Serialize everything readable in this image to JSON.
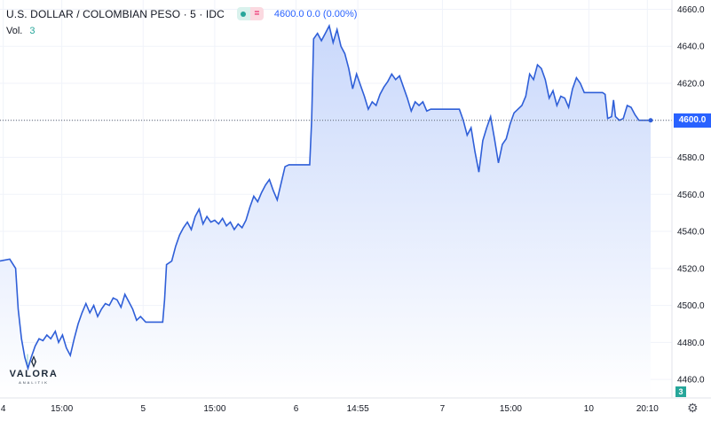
{
  "header": {
    "title": "U.S. DOLLAR / COLOMBIAN PESO · 5 · IDC",
    "eq_symbol": "=",
    "quote": "4600.0  0.0 (0.00%)"
  },
  "volume": {
    "label": "Vol.",
    "value": "3"
  },
  "last_price_label": "4600.0",
  "volume_tag": "3",
  "watermark": {
    "brand": "VALORA",
    "sub": "ANALITIK"
  },
  "colors": {
    "line": "#2f5fd8",
    "area_top": "#c9d8fb",
    "area_bottom": "#ffffff",
    "vol_up": "#26a69a",
    "vol_down": "#ef5350",
    "price_tag": "#2962ff"
  },
  "icons": {
    "settings": "gear-icon"
  },
  "chart_data": {
    "type": "area",
    "ylim": [
      4450,
      4665
    ],
    "y_ticks": [
      4460,
      4480,
      4500,
      4520,
      4540,
      4560,
      4580,
      4600,
      4620,
      4640,
      4660
    ],
    "y_tick_labels": [
      "4460.0",
      "4480.0",
      "4500.0",
      "4520.0",
      "4540.0",
      "4560.0",
      "4580.0",
      "4600.0",
      "4620.0",
      "4640.0",
      "4660.0"
    ],
    "x_range": [
      0,
      100
    ],
    "x_ticks": [
      {
        "x": 0.5,
        "label": "4"
      },
      {
        "x": 9.5,
        "label": "15:00"
      },
      {
        "x": 22.0,
        "label": "5"
      },
      {
        "x": 33.0,
        "label": "15:00"
      },
      {
        "x": 45.5,
        "label": "6"
      },
      {
        "x": 55.0,
        "label": "14:55"
      },
      {
        "x": 68.0,
        "label": "7"
      },
      {
        "x": 78.5,
        "label": "15:00"
      },
      {
        "x": 90.5,
        "label": "10"
      },
      {
        "x": 99.5,
        "label": "20:10"
      }
    ],
    "last_value": 4600.0,
    "price": [
      [
        0.0,
        4524
      ],
      [
        1.5,
        4525
      ],
      [
        2.4,
        4520
      ],
      [
        2.8,
        4498
      ],
      [
        3.3,
        4482
      ],
      [
        3.8,
        4472
      ],
      [
        4.3,
        4466
      ],
      [
        4.8,
        4472
      ],
      [
        5.4,
        4478
      ],
      [
        6.0,
        4482
      ],
      [
        6.6,
        4481
      ],
      [
        7.2,
        4484
      ],
      [
        7.8,
        4482
      ],
      [
        8.5,
        4486
      ],
      [
        9.0,
        4480
      ],
      [
        9.6,
        4484
      ],
      [
        10.2,
        4477
      ],
      [
        10.8,
        4473
      ],
      [
        11.4,
        4482
      ],
      [
        12.0,
        4490
      ],
      [
        12.6,
        4496
      ],
      [
        13.2,
        4501
      ],
      [
        13.8,
        4496
      ],
      [
        14.4,
        4500
      ],
      [
        15.0,
        4494
      ],
      [
        15.6,
        4498
      ],
      [
        16.2,
        4501
      ],
      [
        16.8,
        4500
      ],
      [
        17.4,
        4504
      ],
      [
        18.0,
        4503
      ],
      [
        18.6,
        4499
      ],
      [
        19.2,
        4506
      ],
      [
        19.8,
        4502
      ],
      [
        20.4,
        4498
      ],
      [
        21.0,
        4492
      ],
      [
        21.6,
        4494
      ],
      [
        22.4,
        4491
      ],
      [
        24.0,
        4491
      ],
      [
        25.0,
        4491
      ],
      [
        25.3,
        4503
      ],
      [
        25.6,
        4522
      ],
      [
        26.4,
        4524
      ],
      [
        27.0,
        4532
      ],
      [
        27.6,
        4538
      ],
      [
        28.2,
        4542
      ],
      [
        28.8,
        4545
      ],
      [
        29.4,
        4541
      ],
      [
        30.0,
        4548
      ],
      [
        30.6,
        4552
      ],
      [
        31.2,
        4544
      ],
      [
        31.8,
        4548
      ],
      [
        32.4,
        4545
      ],
      [
        33.0,
        4546
      ],
      [
        33.6,
        4544
      ],
      [
        34.2,
        4547
      ],
      [
        34.8,
        4543
      ],
      [
        35.4,
        4545
      ],
      [
        36.0,
        4541
      ],
      [
        36.6,
        4544
      ],
      [
        37.2,
        4542
      ],
      [
        37.8,
        4546
      ],
      [
        38.4,
        4553
      ],
      [
        39.0,
        4559
      ],
      [
        39.6,
        4556
      ],
      [
        40.2,
        4561
      ],
      [
        40.8,
        4565
      ],
      [
        41.4,
        4568
      ],
      [
        42.0,
        4562
      ],
      [
        42.6,
        4557
      ],
      [
        43.2,
        4566
      ],
      [
        43.8,
        4575
      ],
      [
        44.4,
        4576
      ],
      [
        47.6,
        4576
      ],
      [
        47.9,
        4600
      ],
      [
        48.2,
        4644
      ],
      [
        48.8,
        4647
      ],
      [
        49.4,
        4643
      ],
      [
        50.0,
        4647
      ],
      [
        50.6,
        4651
      ],
      [
        51.2,
        4642
      ],
      [
        51.8,
        4649
      ],
      [
        52.4,
        4640
      ],
      [
        53.0,
        4636
      ],
      [
        53.6,
        4628
      ],
      [
        54.2,
        4617
      ],
      [
        54.8,
        4625
      ],
      [
        55.4,
        4619
      ],
      [
        56.0,
        4613
      ],
      [
        56.6,
        4606
      ],
      [
        57.2,
        4610
      ],
      [
        57.8,
        4608
      ],
      [
        58.4,
        4614
      ],
      [
        59.0,
        4618
      ],
      [
        59.6,
        4621
      ],
      [
        60.2,
        4625
      ],
      [
        60.8,
        4622
      ],
      [
        61.4,
        4624
      ],
      [
        62.0,
        4618
      ],
      [
        62.6,
        4612
      ],
      [
        63.2,
        4605
      ],
      [
        63.8,
        4610
      ],
      [
        64.4,
        4608
      ],
      [
        65.0,
        4610
      ],
      [
        65.6,
        4605
      ],
      [
        66.2,
        4606
      ],
      [
        70.6,
        4606
      ],
      [
        71.2,
        4600
      ],
      [
        71.8,
        4592
      ],
      [
        72.4,
        4596
      ],
      [
        73.0,
        4583
      ],
      [
        73.6,
        4572
      ],
      [
        74.2,
        4589
      ],
      [
        74.8,
        4596
      ],
      [
        75.4,
        4602
      ],
      [
        76.0,
        4590
      ],
      [
        76.6,
        4577
      ],
      [
        77.2,
        4587
      ],
      [
        77.8,
        4590
      ],
      [
        78.4,
        4598
      ],
      [
        79.0,
        4604
      ],
      [
        79.6,
        4606
      ],
      [
        80.2,
        4608
      ],
      [
        80.8,
        4613
      ],
      [
        81.4,
        4625
      ],
      [
        82.0,
        4622
      ],
      [
        82.6,
        4630
      ],
      [
        83.2,
        4628
      ],
      [
        83.8,
        4622
      ],
      [
        84.4,
        4612
      ],
      [
        85.0,
        4616
      ],
      [
        85.6,
        4608
      ],
      [
        86.2,
        4613
      ],
      [
        86.8,
        4612
      ],
      [
        87.4,
        4607
      ],
      [
        88.0,
        4617
      ],
      [
        88.6,
        4623
      ],
      [
        89.2,
        4620
      ],
      [
        89.8,
        4615
      ],
      [
        92.6,
        4615
      ],
      [
        93.0,
        4614
      ],
      [
        93.4,
        4601
      ],
      [
        94.0,
        4602
      ],
      [
        94.3,
        4611
      ],
      [
        94.6,
        4602
      ],
      [
        95.2,
        4600
      ],
      [
        95.8,
        4601
      ],
      [
        96.4,
        4608
      ],
      [
        97.0,
        4607
      ],
      [
        97.6,
        4603
      ],
      [
        98.2,
        4600
      ],
      [
        100.0,
        4600
      ]
    ]
  }
}
